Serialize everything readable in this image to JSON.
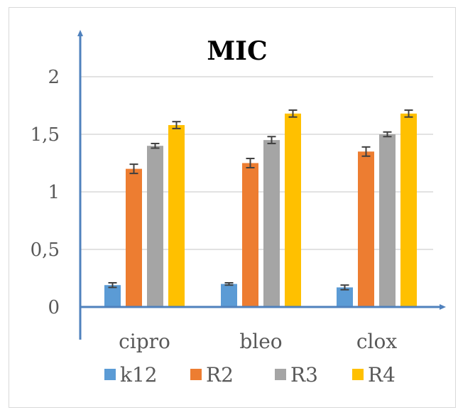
{
  "chart_data": {
    "type": "bar",
    "title": "MIC",
    "xlabel": "",
    "ylabel": "",
    "categories": [
      "cipro",
      "bleo",
      "clox"
    ],
    "ylim": [
      0,
      2.3
    ],
    "yticks": [
      0,
      0.5,
      1,
      1.5,
      2
    ],
    "ytick_labels": [
      "0",
      "0,5",
      "1",
      "1,5",
      "2"
    ],
    "grid": true,
    "legend_position": "bottom",
    "series": [
      {
        "name": "k12",
        "color": "#5b9bd5",
        "values": [
          0.19,
          0.2,
          0.17
        ],
        "errors": [
          0.02,
          0.01,
          0.02
        ]
      },
      {
        "name": "R2",
        "color": "#ed7d31",
        "values": [
          1.2,
          1.25,
          1.35
        ],
        "errors": [
          0.04,
          0.04,
          0.04
        ]
      },
      {
        "name": "R3",
        "color": "#a5a5a5",
        "values": [
          1.4,
          1.45,
          1.5
        ],
        "errors": [
          0.02,
          0.03,
          0.02
        ]
      },
      {
        "name": "R4",
        "color": "#ffc000",
        "values": [
          1.58,
          1.68,
          1.68
        ],
        "errors": [
          0.03,
          0.03,
          0.03
        ]
      }
    ],
    "axis_color": "#4f81bd",
    "gridline_color": "#d9d9d9",
    "errorbar_color": "#404040"
  }
}
